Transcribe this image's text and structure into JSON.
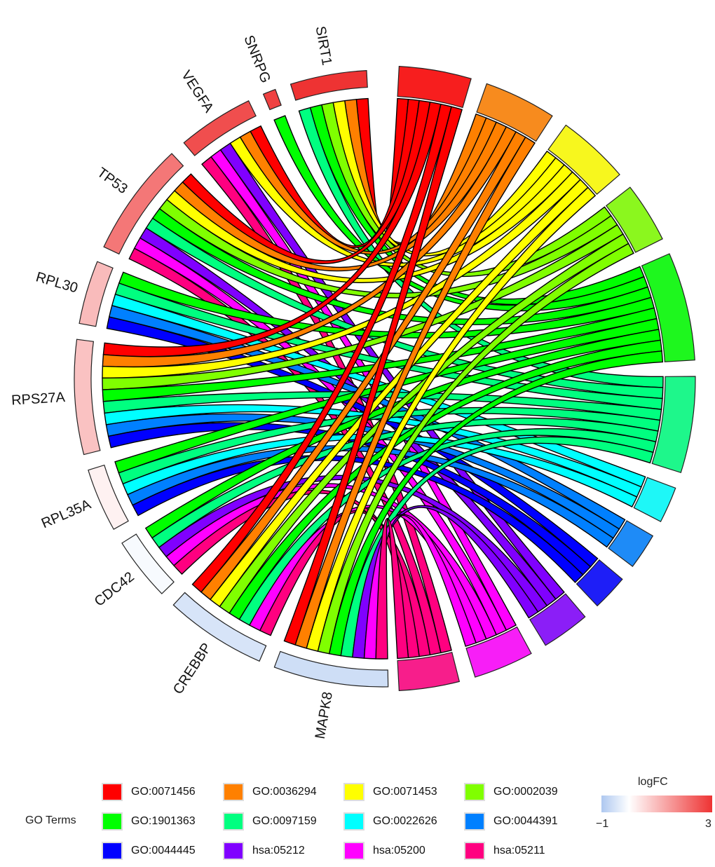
{
  "chart_data": {
    "type": "chord",
    "genes": [
      {
        "name": "SIRT1",
        "logFC": 3.0
      },
      {
        "name": "SNRPG",
        "logFC": 2.8
      },
      {
        "name": "VEGFA",
        "logFC": 2.6
      },
      {
        "name": "TP53",
        "logFC": 2.0
      },
      {
        "name": "RPL30",
        "logFC": 1.0
      },
      {
        "name": "RPS27A",
        "logFC": 0.9
      },
      {
        "name": "RPL35A",
        "logFC": 0.2
      },
      {
        "name": "CDC42",
        "logFC": -0.1
      },
      {
        "name": "CREBBP",
        "logFC": -0.5
      },
      {
        "name": "MAPK8",
        "logFC": -0.6
      }
    ],
    "terms": [
      {
        "id": "GO:0071456",
        "color": "#FF0000"
      },
      {
        "id": "GO:0036294",
        "color": "#FF8000"
      },
      {
        "id": "GO:0071453",
        "color": "#FFFF00"
      },
      {
        "id": "GO:0002039",
        "color": "#80FF00"
      },
      {
        "id": "GO:1901363",
        "color": "#00FF00"
      },
      {
        "id": "GO:0097159",
        "color": "#00FF80"
      },
      {
        "id": "GO:0022626",
        "color": "#00FFFF"
      },
      {
        "id": "GO:0044391",
        "color": "#0080FF"
      },
      {
        "id": "GO:0044445",
        "color": "#0000FF"
      },
      {
        "id": "hsa:05212",
        "color": "#8000FF"
      },
      {
        "id": "hsa:05200",
        "color": "#FF00FF"
      },
      {
        "id": "hsa:05211",
        "color": "#FF0080"
      }
    ],
    "links": [
      [
        "SIRT1",
        "GO:0071456"
      ],
      [
        "SIRT1",
        "GO:0036294"
      ],
      [
        "SIRT1",
        "GO:0071453"
      ],
      [
        "SIRT1",
        "GO:0002039"
      ],
      [
        "SIRT1",
        "GO:1901363"
      ],
      [
        "SIRT1",
        "GO:0097159"
      ],
      [
        "SNRPG",
        "GO:1901363"
      ],
      [
        "VEGFA",
        "GO:0071456"
      ],
      [
        "VEGFA",
        "GO:0036294"
      ],
      [
        "VEGFA",
        "GO:0071453"
      ],
      [
        "VEGFA",
        "hsa:05212"
      ],
      [
        "VEGFA",
        "hsa:05200"
      ],
      [
        "VEGFA",
        "hsa:05211"
      ],
      [
        "TP53",
        "GO:0071456"
      ],
      [
        "TP53",
        "GO:0036294"
      ],
      [
        "TP53",
        "GO:0071453"
      ],
      [
        "TP53",
        "GO:0002039"
      ],
      [
        "TP53",
        "GO:1901363"
      ],
      [
        "TP53",
        "GO:0097159"
      ],
      [
        "TP53",
        "hsa:05212"
      ],
      [
        "TP53",
        "hsa:05200"
      ],
      [
        "TP53",
        "hsa:05211"
      ],
      [
        "RPL30",
        "GO:1901363"
      ],
      [
        "RPL30",
        "GO:0097159"
      ],
      [
        "RPL30",
        "GO:0022626"
      ],
      [
        "RPL30",
        "GO:0044391"
      ],
      [
        "RPL30",
        "GO:0044445"
      ],
      [
        "RPS27A",
        "GO:0071456"
      ],
      [
        "RPS27A",
        "GO:0036294"
      ],
      [
        "RPS27A",
        "GO:0071453"
      ],
      [
        "RPS27A",
        "GO:0002039"
      ],
      [
        "RPS27A",
        "GO:1901363"
      ],
      [
        "RPS27A",
        "GO:0097159"
      ],
      [
        "RPS27A",
        "GO:0022626"
      ],
      [
        "RPS27A",
        "GO:0044391"
      ],
      [
        "RPS27A",
        "GO:0044445"
      ],
      [
        "RPL35A",
        "GO:1901363"
      ],
      [
        "RPL35A",
        "GO:0097159"
      ],
      [
        "RPL35A",
        "GO:0022626"
      ],
      [
        "RPL35A",
        "GO:0044391"
      ],
      [
        "RPL35A",
        "GO:0044445"
      ],
      [
        "CDC42",
        "GO:1901363"
      ],
      [
        "CDC42",
        "GO:0097159"
      ],
      [
        "CDC42",
        "hsa:05212"
      ],
      [
        "CDC42",
        "hsa:05200"
      ],
      [
        "CDC42",
        "hsa:05211"
      ],
      [
        "CREBBP",
        "GO:0071456"
      ],
      [
        "CREBBP",
        "GO:0036294"
      ],
      [
        "CREBBP",
        "GO:0071453"
      ],
      [
        "CREBBP",
        "GO:0002039"
      ],
      [
        "CREBBP",
        "GO:1901363"
      ],
      [
        "CREBBP",
        "GO:0097159"
      ],
      [
        "CREBBP",
        "hsa:05200"
      ],
      [
        "CREBBP",
        "hsa:05211"
      ],
      [
        "MAPK8",
        "GO:0071456"
      ],
      [
        "MAPK8",
        "GO:0036294"
      ],
      [
        "MAPK8",
        "GO:0071453"
      ],
      [
        "MAPK8",
        "GO:0002039"
      ],
      [
        "MAPK8",
        "GO:1901363"
      ],
      [
        "MAPK8",
        "GO:0097159"
      ],
      [
        "MAPK8",
        "hsa:05212"
      ],
      [
        "MAPK8",
        "hsa:05200"
      ],
      [
        "MAPK8",
        "hsa:05211"
      ]
    ],
    "legend_title": "GO Terms",
    "colorbar": {
      "title": "logFC",
      "min": -1,
      "max": 3,
      "min_label": "−1",
      "max_label": "3",
      "low_color": "#aec8f0",
      "mid_color": "#ffffff",
      "high_color": "#ee3333"
    }
  }
}
